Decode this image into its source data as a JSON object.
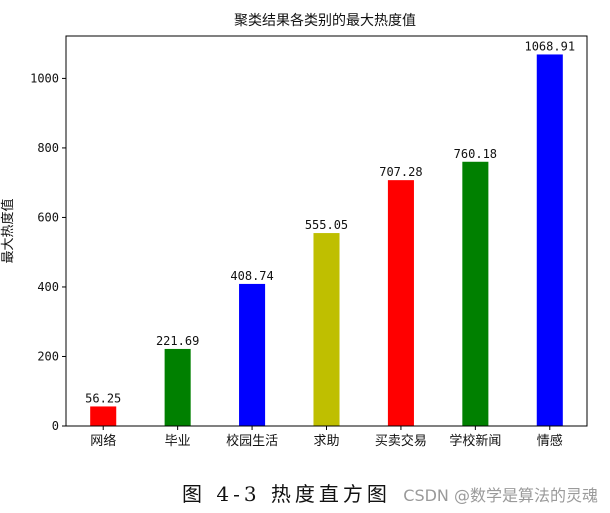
{
  "chart_data": {
    "type": "bar",
    "title": "聚类结果各类别的最大热度值",
    "xlabel": "",
    "ylabel": "最大热度值",
    "categories": [
      "网络",
      "毕业",
      "校园生活",
      "求助",
      "买卖交易",
      "学校新闻",
      "情感"
    ],
    "values": [
      56.25,
      221.69,
      408.74,
      555.05,
      707.28,
      760.18,
      1068.91
    ],
    "value_labels": [
      "56.25",
      "221.69",
      "408.74",
      "555.05",
      "707.28",
      "760.18",
      "1068.91"
    ],
    "colors": [
      "#ff0000",
      "#008000",
      "#0000ff",
      "#bfbf00",
      "#ff0000",
      "#008000",
      "#0000ff"
    ],
    "yticks": [
      0,
      200,
      400,
      600,
      800,
      1000
    ],
    "ylim": [
      0,
      1122
    ],
    "grid": false,
    "legend": "none"
  },
  "caption": {
    "text": "图 4-3  热度直方图",
    "watermark": "CSDN @数学是算法的灵魂"
  }
}
